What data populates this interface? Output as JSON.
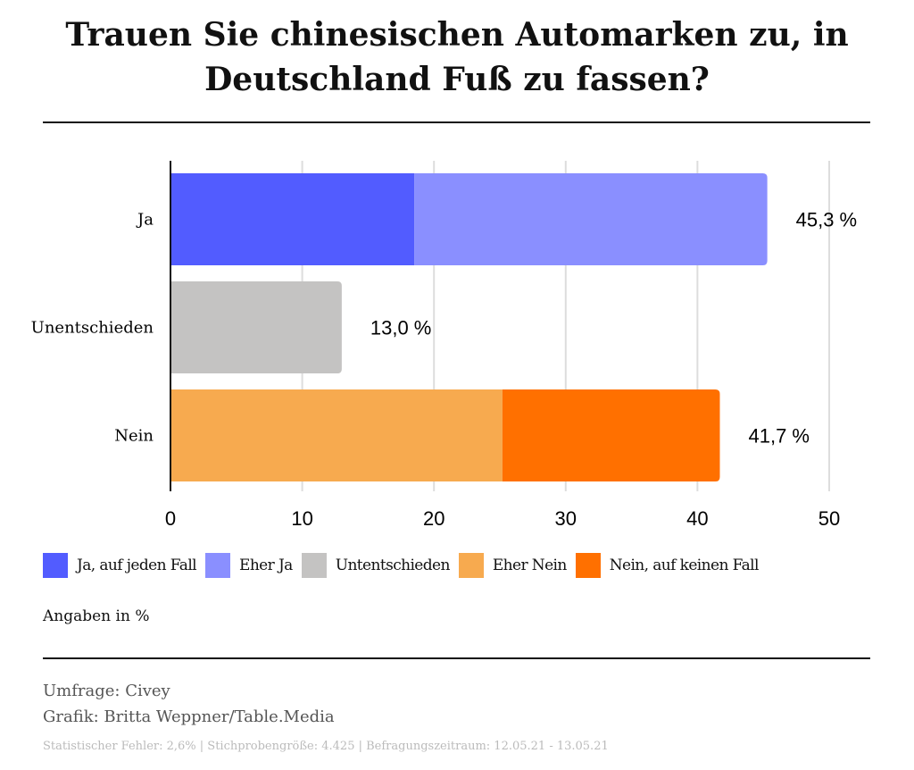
{
  "title": "Trauen Sie chinesischen Automarken zu, in Deutschland Fuß zu fassen?",
  "chart_data": {
    "type": "bar",
    "orientation": "horizontal",
    "stacked": true,
    "categories": [
      "Ja",
      "Unentschieden",
      "Nein"
    ],
    "series": [
      {
        "name": "Ja, auf jeden Fall",
        "color": "#525cff",
        "values": [
          18.5,
          0,
          0
        ]
      },
      {
        "name": "Eher Ja",
        "color": "#8a8fff",
        "values": [
          26.8,
          0,
          0
        ]
      },
      {
        "name": "Untentschieden",
        "color": "#c4c3c2",
        "values": [
          0,
          13.0,
          0
        ]
      },
      {
        "name": "Eher Nein",
        "color": "#f7aa4f",
        "values": [
          0,
          0,
          25.2
        ]
      },
      {
        "name": "Nein, auf keinen Fall",
        "color": "#ff7000",
        "values": [
          0,
          0,
          16.5
        ]
      }
    ],
    "totals_labels": [
      "45,3 %",
      "13,0 %",
      "41,7 %"
    ],
    "xlim": [
      0,
      50
    ],
    "xticks": [
      "0",
      "10",
      "20",
      "30",
      "40",
      "50"
    ],
    "grid": true,
    "legend_placement": "bottom"
  },
  "note": "Angaben in %",
  "source": "Umfrage: Civey",
  "credit": "Grafik: Britta Weppner/Table.Media",
  "footnote": "Statistischer Fehler: 2,6% | Stichprobengröße: 4.425 | Befragungszeitraum: 12.05.21 - 13.05.21"
}
